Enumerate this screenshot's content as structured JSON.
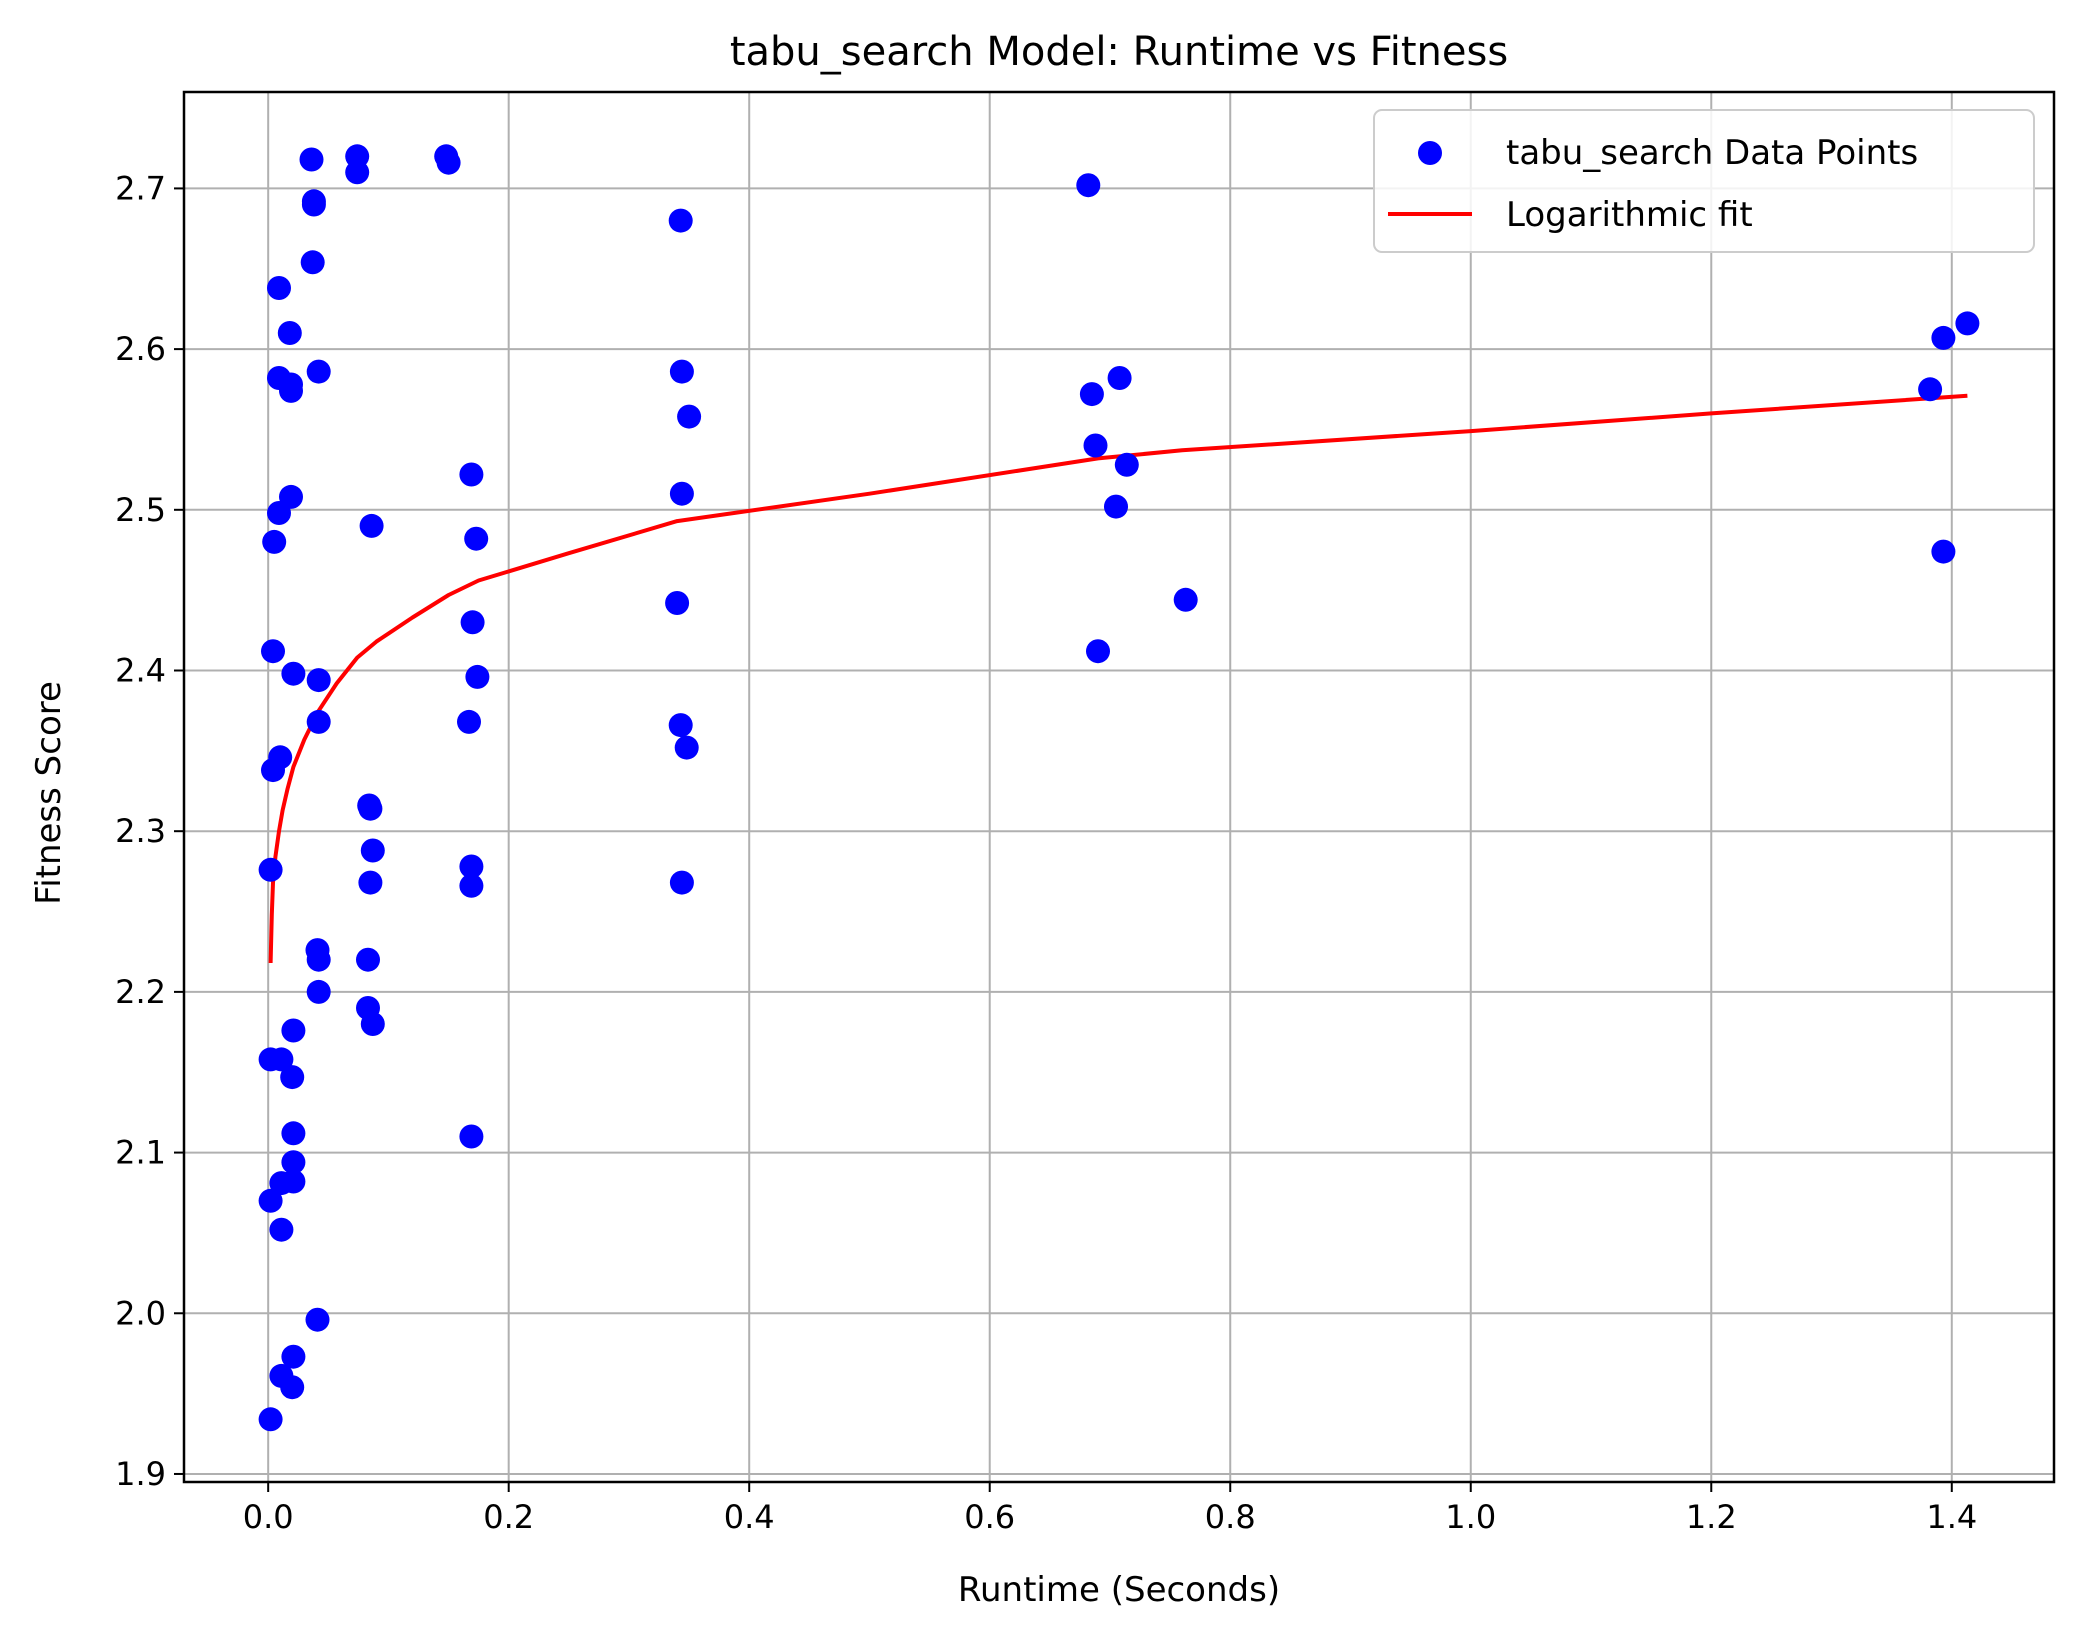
{
  "chart_data": {
    "type": "scatter",
    "title": "tabu_search Model: Runtime vs Fitness",
    "xlabel": "Runtime (Seconds)",
    "ylabel": "Fitness Score",
    "xlim": [
      -0.07,
      1.485
    ],
    "ylim": [
      1.895,
      2.76
    ],
    "xticks": [
      0.0,
      0.2,
      0.4,
      0.6,
      0.8,
      1.0,
      1.2,
      1.4
    ],
    "xtick_labels": [
      "0.0",
      "0.2",
      "0.4",
      "0.6",
      "0.8",
      "1.0",
      "1.2",
      "1.4"
    ],
    "yticks": [
      1.9,
      2.0,
      2.1,
      2.2,
      2.3,
      2.4,
      2.5,
      2.6,
      2.7
    ],
    "ytick_labels": [
      "1.9",
      "2.0",
      "2.1",
      "2.2",
      "2.3",
      "2.4",
      "2.5",
      "2.6",
      "2.7"
    ],
    "grid": true,
    "legend_position": "top-right",
    "series": [
      {
        "name": "tabu_search Data Points",
        "kind": "scatter",
        "color": "#0000ff",
        "points": [
          [
            0.002,
            2.276
          ],
          [
            0.002,
            2.158
          ],
          [
            0.002,
            2.07
          ],
          [
            0.002,
            1.934
          ],
          [
            0.004,
            2.412
          ],
          [
            0.004,
            2.338
          ],
          [
            0.005,
            2.48
          ],
          [
            0.009,
            2.638
          ],
          [
            0.009,
            2.582
          ],
          [
            0.009,
            2.498
          ],
          [
            0.01,
            2.346
          ],
          [
            0.011,
            2.158
          ],
          [
            0.011,
            2.081
          ],
          [
            0.011,
            2.052
          ],
          [
            0.011,
            1.961
          ],
          [
            0.018,
            2.61
          ],
          [
            0.019,
            2.578
          ],
          [
            0.019,
            2.574
          ],
          [
            0.019,
            2.508
          ],
          [
            0.02,
            2.147
          ],
          [
            0.02,
            1.954
          ],
          [
            0.021,
            2.398
          ],
          [
            0.021,
            2.176
          ],
          [
            0.021,
            2.112
          ],
          [
            0.021,
            2.094
          ],
          [
            0.021,
            2.082
          ],
          [
            0.021,
            1.973
          ],
          [
            0.036,
            2.718
          ],
          [
            0.038,
            2.692
          ],
          [
            0.038,
            2.69
          ],
          [
            0.037,
            2.654
          ],
          [
            0.042,
            2.586
          ],
          [
            0.042,
            2.394
          ],
          [
            0.042,
            2.368
          ],
          [
            0.041,
            2.226
          ],
          [
            0.042,
            2.22
          ],
          [
            0.042,
            2.2
          ],
          [
            0.041,
            1.996
          ],
          [
            0.074,
            2.72
          ],
          [
            0.074,
            2.71
          ],
          [
            0.084,
            2.316
          ],
          [
            0.085,
            2.314
          ],
          [
            0.087,
            2.288
          ],
          [
            0.086,
            2.49
          ],
          [
            0.085,
            2.268
          ],
          [
            0.083,
            2.22
          ],
          [
            0.083,
            2.19
          ],
          [
            0.087,
            2.18
          ],
          [
            0.148,
            2.72
          ],
          [
            0.15,
            2.716
          ],
          [
            0.169,
            2.522
          ],
          [
            0.173,
            2.482
          ],
          [
            0.17,
            2.43
          ],
          [
            0.174,
            2.396
          ],
          [
            0.167,
            2.368
          ],
          [
            0.169,
            2.278
          ],
          [
            0.169,
            2.266
          ],
          [
            0.169,
            2.11
          ],
          [
            0.343,
            2.68
          ],
          [
            0.344,
            2.586
          ],
          [
            0.35,
            2.558
          ],
          [
            0.344,
            2.51
          ],
          [
            0.34,
            2.442
          ],
          [
            0.343,
            2.366
          ],
          [
            0.348,
            2.352
          ],
          [
            0.344,
            2.268
          ],
          [
            0.682,
            2.702
          ],
          [
            0.685,
            2.572
          ],
          [
            0.708,
            2.582
          ],
          [
            0.688,
            2.54
          ],
          [
            0.714,
            2.528
          ],
          [
            0.705,
            2.502
          ],
          [
            0.763,
            2.444
          ],
          [
            0.69,
            2.412
          ],
          [
            1.382,
            2.575
          ],
          [
            1.393,
            2.607
          ],
          [
            1.413,
            2.616
          ],
          [
            1.393,
            2.474
          ]
        ]
      },
      {
        "name": "Logarithmic fit",
        "kind": "line",
        "color": "#ff0000",
        "points": [
          [
            0.002,
            2.218
          ],
          [
            0.003,
            2.248
          ],
          [
            0.004,
            2.268
          ],
          [
            0.006,
            2.284
          ],
          [
            0.009,
            2.3
          ],
          [
            0.012,
            2.313
          ],
          [
            0.016,
            2.326
          ],
          [
            0.021,
            2.34
          ],
          [
            0.03,
            2.357
          ],
          [
            0.042,
            2.375
          ],
          [
            0.057,
            2.392
          ],
          [
            0.074,
            2.408
          ],
          [
            0.09,
            2.418
          ],
          [
            0.12,
            2.433
          ],
          [
            0.15,
            2.447
          ],
          [
            0.175,
            2.456
          ],
          [
            0.25,
            2.473
          ],
          [
            0.34,
            2.493
          ],
          [
            0.5,
            2.51
          ],
          [
            0.69,
            2.532
          ],
          [
            0.76,
            2.537
          ],
          [
            1.0,
            2.549
          ],
          [
            1.2,
            2.56
          ],
          [
            1.413,
            2.571
          ]
        ]
      }
    ]
  }
}
